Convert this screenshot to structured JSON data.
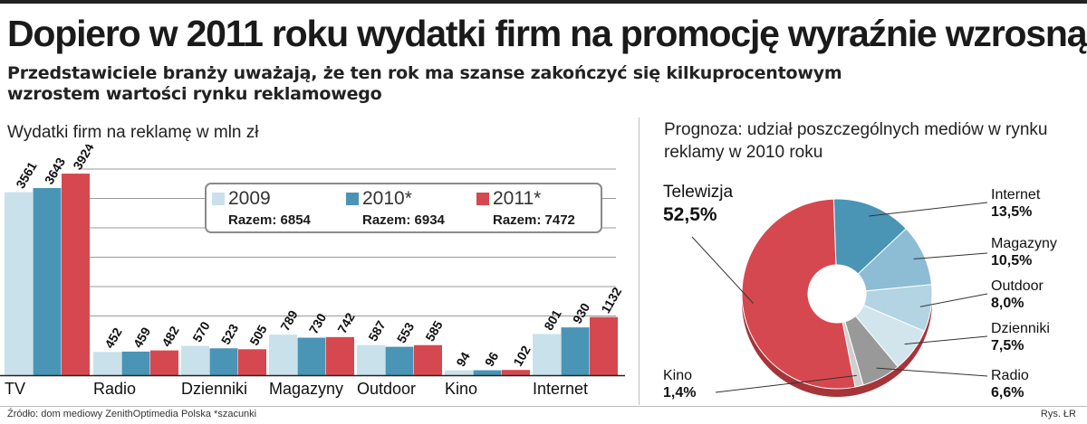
{
  "header": {
    "title": "Dopiero w 2011 roku wydatki firm na promocję wyraźnie wzrosną",
    "subtitle": "Przedstawiciele branży uważają, że ten rok ma szanse zakończyć się kilkuprocentowym wzrostem wartości rynku reklamowego"
  },
  "footer": {
    "source": "Źródło: dom mediowy ZenithOptimedia Polska    *szacunki",
    "credit": "Rys. ŁR"
  },
  "colors": {
    "y2009": "#c9e1ea",
    "y2010": "#4a94b5",
    "y2011": "#d6484f",
    "pie_light": "#d2e5ec",
    "pie_grey": "#999999"
  },
  "chart_data": [
    {
      "type": "bar",
      "title": "Wydatki firm na reklamę w mln zł",
      "categories": [
        "TV",
        "Radio",
        "Dzienniki",
        "Magazyny",
        "Outdoor",
        "Kino",
        "Internet"
      ],
      "series": [
        {
          "name": "2009",
          "values": [
            3561,
            452,
            570,
            789,
            587,
            94,
            801
          ]
        },
        {
          "name": "2010*",
          "values": [
            3643,
            459,
            523,
            730,
            553,
            96,
            930
          ]
        },
        {
          "name": "2011*",
          "values": [
            3924,
            482,
            505,
            742,
            585,
            102,
            1132
          ]
        }
      ],
      "legend_totals": [
        "Razem: 6854",
        "Razem: 6934",
        "Razem: 7472"
      ],
      "ylim": [
        0,
        4400
      ],
      "grid": true,
      "legend_position": "top-center"
    },
    {
      "type": "pie",
      "donut": true,
      "title": "Prognoza: udział poszczególnych mediów w rynku reklamy w 2010 roku",
      "slices": [
        {
          "label": "Internet",
          "value": 13.5,
          "text": "13,5%"
        },
        {
          "label": "Magazyny",
          "value": 10.5,
          "text": "10,5%"
        },
        {
          "label": "Outdoor",
          "value": 8.0,
          "text": "8,0%"
        },
        {
          "label": "Dzienniki",
          "value": 7.5,
          "text": "7,5%"
        },
        {
          "label": "Radio",
          "value": 6.6,
          "text": "6,6%"
        },
        {
          "label": "Kino",
          "value": 1.4,
          "text": "1,4%"
        },
        {
          "label": "Telewizja",
          "value": 52.5,
          "text": "52,5%"
        }
      ]
    }
  ]
}
